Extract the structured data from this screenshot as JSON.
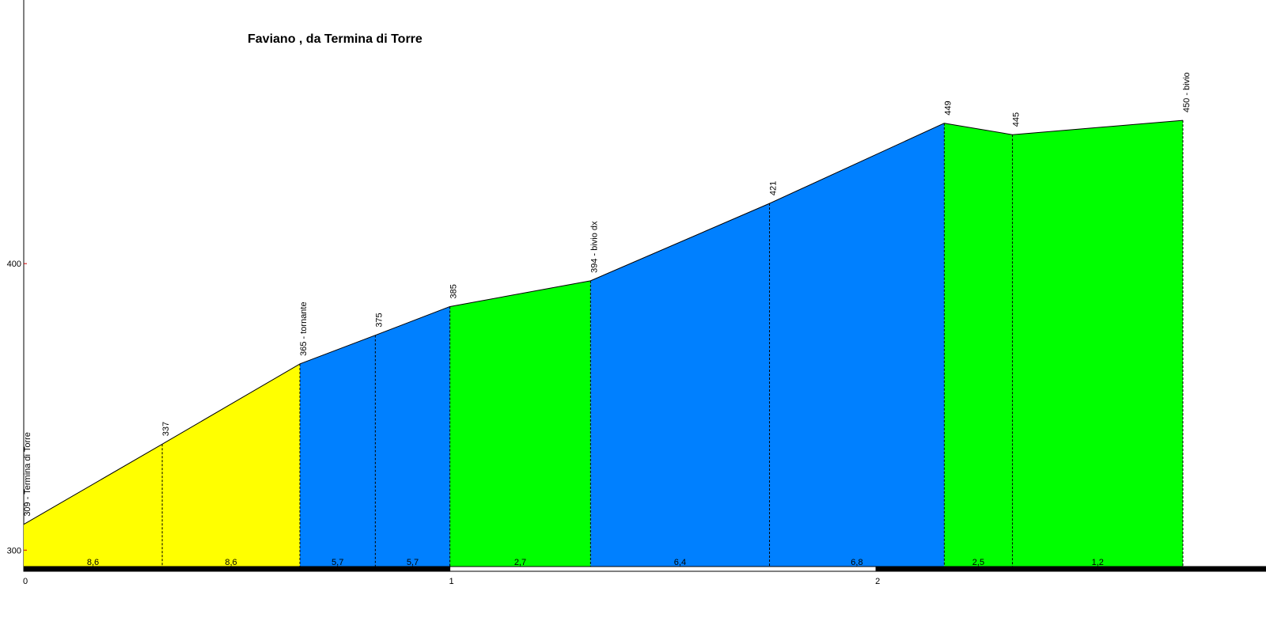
{
  "chart_data": {
    "type": "area",
    "title": "Faviano , da Termina di Torre",
    "x": [
      0,
      0.325,
      0.648,
      0.825,
      1.0,
      1.33,
      1.75,
      2.16,
      2.32,
      2.72
    ],
    "values": [
      309,
      337,
      365,
      375,
      385,
      394,
      421,
      449,
      445,
      450
    ],
    "point_labels": [
      "309 - Termina di Torre",
      "337",
      "365 - tornante",
      "375",
      "385",
      "394 - bivio dx",
      "421",
      "449",
      "445",
      "450 - bivio"
    ],
    "segment_labels": [
      "8,6",
      "8,6",
      "5,7",
      "5,7",
      "2,7",
      "6,4",
      "6,8",
      "2,5",
      "1,2"
    ],
    "segment_colors": [
      "#ffff00",
      "#ffff00",
      "#0080ff",
      "#0080ff",
      "#00ff00",
      "#0080ff",
      "#0080ff",
      "#00ff00",
      "#00ff00"
    ],
    "xlim": [
      0,
      2.915
    ],
    "xticks": [
      0,
      1,
      2
    ],
    "ylim": [
      294,
      492
    ],
    "yticks": [
      300,
      400
    ]
  }
}
